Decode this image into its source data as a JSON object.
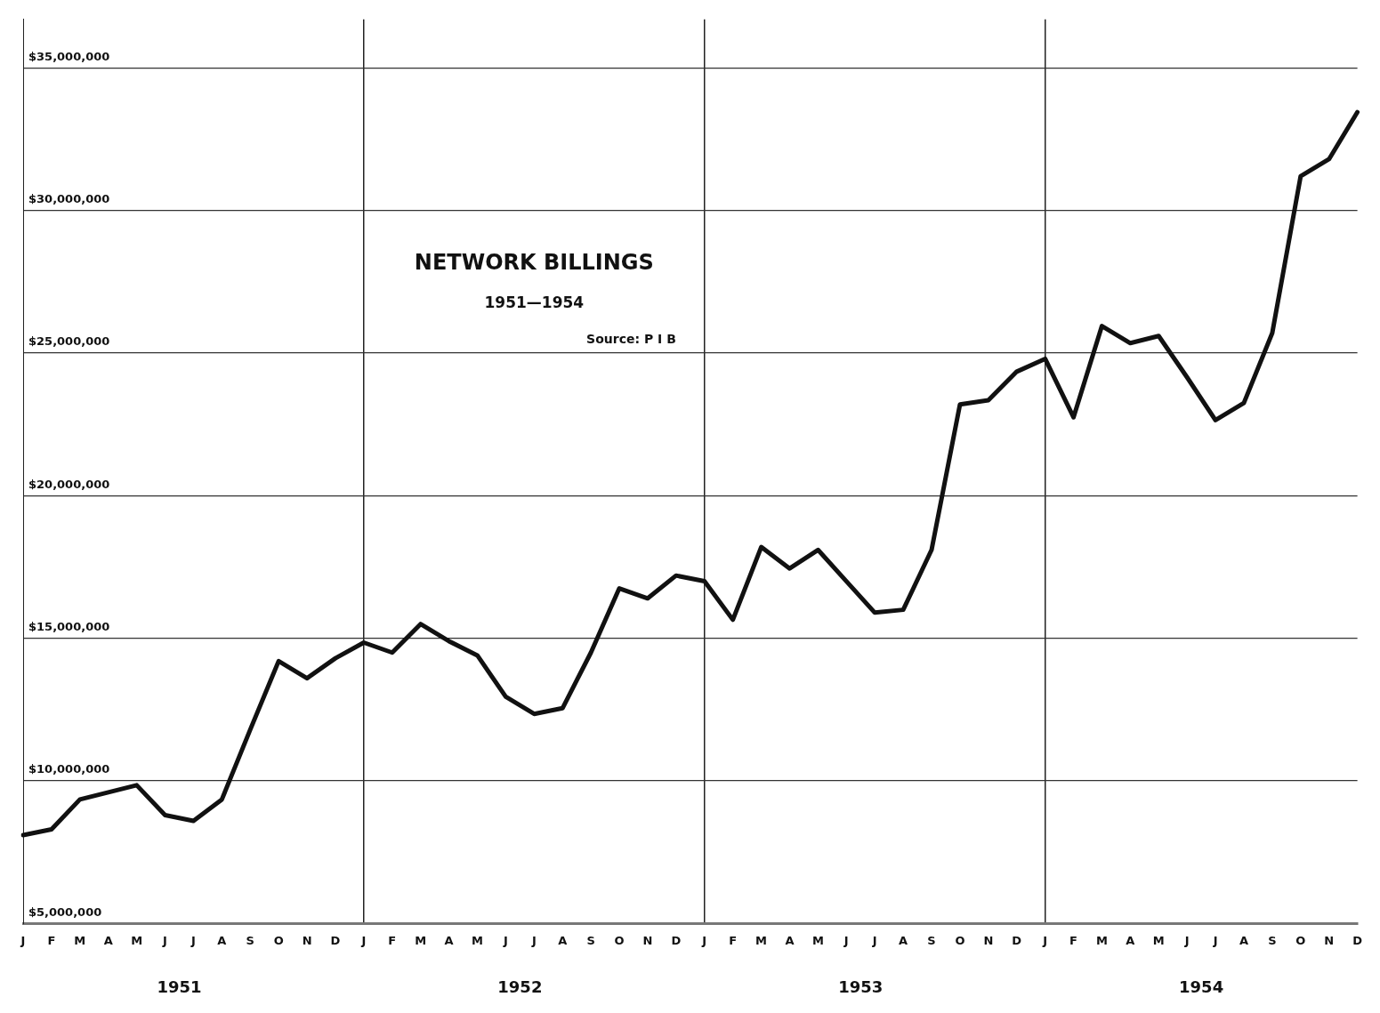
{
  "chart_data": {
    "type": "line",
    "title": "NETWORK BILLINGS",
    "subtitle": "1951—1954",
    "annotations": [
      "Source: P I B",
      "1951",
      "1952",
      "1953",
      "1954"
    ],
    "categories": [
      "J",
      "F",
      "M",
      "A",
      "M",
      "J",
      "J",
      "A",
      "S",
      "O",
      "N",
      "D",
      "J",
      "F",
      "M",
      "A",
      "M",
      "J",
      "J",
      "A",
      "S",
      "O",
      "N",
      "D",
      "J",
      "F",
      "M",
      "A",
      "M",
      "J",
      "J",
      "A",
      "S",
      "O",
      "N",
      "D",
      "J",
      "F",
      "M",
      "A",
      "M",
      "J",
      "J",
      "A",
      "S",
      "O",
      "N",
      "D"
    ],
    "series": [
      {
        "color": "#111111",
        "values": [
          8100000,
          8300000,
          9350000,
          9600000,
          9850000,
          8800000,
          8600000,
          9350000,
          11800000,
          14200000,
          13600000,
          14300000,
          14850000,
          14500000,
          15500000,
          14900000,
          14400000,
          12950000,
          12350000,
          12550000,
          14500000,
          16750000,
          16400000,
          17200000,
          17000000,
          15650000,
          18200000,
          17450000,
          18100000,
          17000000,
          15900000,
          16000000,
          18100000,
          23200000,
          23350000,
          24350000,
          24800000,
          22750000,
          25950000,
          25350000,
          25600000,
          24150000,
          22650000,
          23250000,
          25700000,
          31200000,
          31800000,
          33450000
        ]
      }
    ],
    "ylim": [
      5000000,
      36700000
    ],
    "yticks": [
      {
        "value": 5000000,
        "label": "$5,000,000"
      },
      {
        "value": 10000000,
        "label": "$10,000,000"
      },
      {
        "value": 15000000,
        "label": "$15,000,000"
      },
      {
        "value": 20000000,
        "label": "$20,000,000"
      },
      {
        "value": 25000000,
        "label": "$25,000,000"
      },
      {
        "value": 30000000,
        "label": "$30,000,000"
      },
      {
        "value": 35000000,
        "label": "$35,000,000"
      }
    ],
    "grid": true,
    "legend": false,
    "marker": "none",
    "line_style": "solid"
  }
}
